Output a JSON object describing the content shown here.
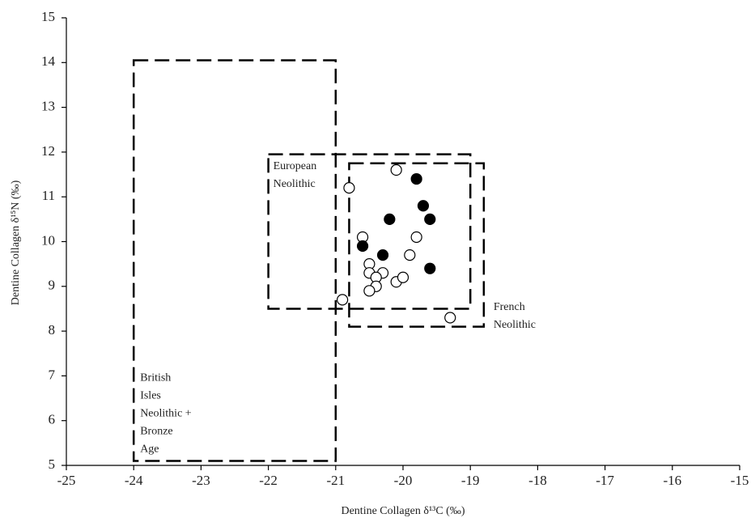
{
  "chart_data": {
    "type": "scatter",
    "x_label": "Dentine Collagen δ¹³C (‰)",
    "y_label": "Dentine Collagen δ¹⁵N (‰)",
    "xlim": [
      -25,
      -15
    ],
    "xticks": [
      -25,
      -24,
      -23,
      -22,
      -21,
      -20,
      -19,
      -18,
      -17,
      -16,
      -15
    ],
    "ylim": [
      5,
      15
    ],
    "yticks": [
      5,
      6,
      7,
      8,
      9,
      10,
      11,
      12,
      13,
      14,
      15
    ],
    "grid": false,
    "series": [
      {
        "color": "#ffffff",
        "stroke": "#000000",
        "x": [
          -20.1,
          -20.8,
          -20.6,
          -19.8,
          -19.9,
          -20.5,
          -20.5,
          -20.3,
          -20.4,
          -20.1,
          -20.0,
          -20.4,
          -20.5,
          -20.9,
          -19.3
        ],
        "values": [
          11.6,
          11.2,
          10.1,
          10.1,
          9.7,
          9.5,
          9.3,
          9.3,
          9.2,
          9.1,
          9.2,
          9.0,
          8.9,
          8.7,
          8.3
        ]
      },
      {
        "color": "#000000",
        "stroke": "#000000",
        "x": [
          -19.8,
          -19.7,
          -20.2,
          -19.6,
          -20.6,
          -20.3,
          -19.6
        ],
        "values": [
          11.4,
          10.8,
          10.5,
          10.5,
          9.9,
          9.7,
          9.4
        ]
      }
    ],
    "regions": [
      {
        "label": [
          "British",
          "Isles",
          "Neolithic +",
          "Bronze",
          "Age"
        ],
        "xlim": [
          -24,
          -21
        ],
        "ylim": [
          5.1,
          14.05
        ]
      },
      {
        "label": [
          "European",
          "Neolithic"
        ],
        "xlim": [
          -22,
          -19
        ],
        "ylim": [
          8.5,
          11.95
        ]
      },
      {
        "label": [
          "French",
          "Neolithic"
        ],
        "xlim": [
          -20.8,
          -18.8
        ],
        "ylim": [
          8.1,
          11.75
        ]
      }
    ]
  }
}
